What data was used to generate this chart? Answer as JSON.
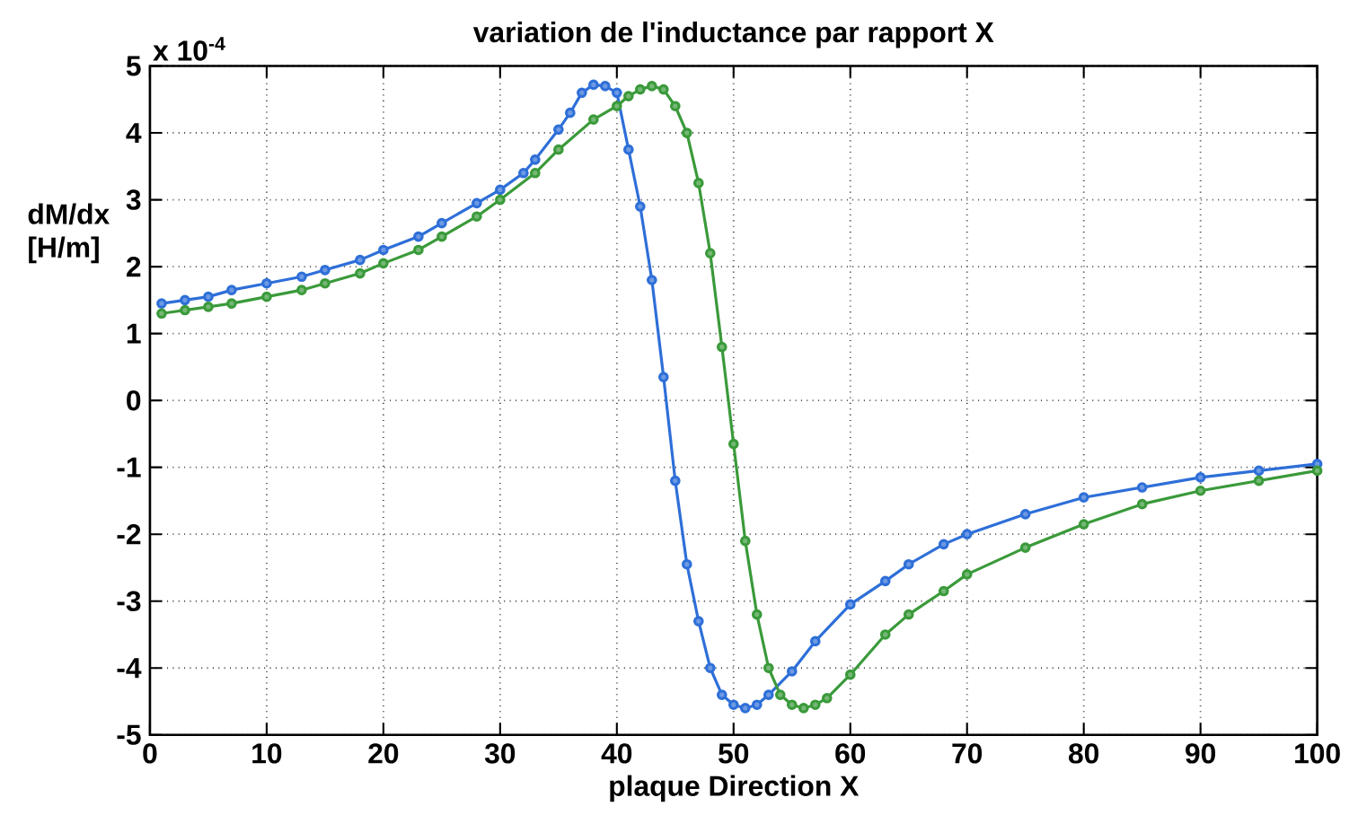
{
  "chart_data": {
    "type": "line",
    "title": "variation de l'inductance par rapport  X",
    "xlabel": "plaque Direction X",
    "ylabel": "dM/dx [H/m]",
    "annotations": [
      "x 10$^{-4}$"
    ],
    "xlim": [
      0,
      100
    ],
    "ylim": [
      -5,
      5
    ],
    "xticks": [
      0,
      10,
      20,
      30,
      40,
      50,
      60,
      70,
      80,
      90,
      100
    ],
    "yticks": [
      -5,
      -4,
      -3,
      -2,
      -1,
      0,
      1,
      2,
      3,
      4,
      5
    ],
    "grid": true,
    "marker": "circle",
    "line_style": "solid",
    "series": [
      {
        "color": "#2e6fd8",
        "x": [
          1,
          3,
          5,
          7,
          10,
          13,
          15,
          18,
          20,
          23,
          25,
          28,
          30,
          32,
          33,
          35,
          36,
          37,
          38,
          39,
          40,
          41,
          42,
          43,
          44,
          45,
          46,
          47,
          48,
          49,
          50,
          51,
          52,
          53,
          55,
          57,
          60,
          63,
          65,
          68,
          70,
          75,
          80,
          85,
          90,
          95,
          100
        ],
        "values": [
          1.45,
          1.5,
          1.55,
          1.65,
          1.75,
          1.85,
          1.95,
          2.1,
          2.25,
          2.45,
          2.65,
          2.95,
          3.15,
          3.4,
          3.6,
          4.05,
          4.3,
          4.6,
          4.72,
          4.7,
          4.6,
          3.75,
          2.9,
          1.8,
          0.35,
          -1.2,
          -2.45,
          -3.3,
          -4.0,
          -4.4,
          -4.55,
          -4.6,
          -4.55,
          -4.4,
          -4.05,
          -3.6,
          -3.05,
          -2.7,
          -2.45,
          -2.15,
          -2.0,
          -1.7,
          -1.45,
          -1.3,
          -1.15,
          -1.05,
          -0.95
        ]
      },
      {
        "color": "#3a9a3a",
        "x": [
          1,
          3,
          5,
          7,
          10,
          13,
          15,
          18,
          20,
          23,
          25,
          28,
          30,
          33,
          35,
          38,
          40,
          41,
          42,
          43,
          44,
          45,
          46,
          47,
          48,
          49,
          50,
          51,
          52,
          53,
          54,
          55,
          56,
          57,
          58,
          60,
          63,
          65,
          68,
          70,
          75,
          80,
          85,
          90,
          95,
          100
        ],
        "values": [
          1.3,
          1.35,
          1.4,
          1.45,
          1.55,
          1.65,
          1.75,
          1.9,
          2.05,
          2.25,
          2.45,
          2.75,
          3.0,
          3.4,
          3.75,
          4.2,
          4.4,
          4.55,
          4.65,
          4.7,
          4.65,
          4.4,
          4.0,
          3.25,
          2.2,
          0.8,
          -0.65,
          -2.1,
          -3.2,
          -4.0,
          -4.4,
          -4.55,
          -4.6,
          -4.55,
          -4.45,
          -4.1,
          -3.5,
          -3.2,
          -2.85,
          -2.6,
          -2.2,
          -1.85,
          -1.55,
          -1.35,
          -1.2,
          -1.05
        ]
      }
    ]
  }
}
